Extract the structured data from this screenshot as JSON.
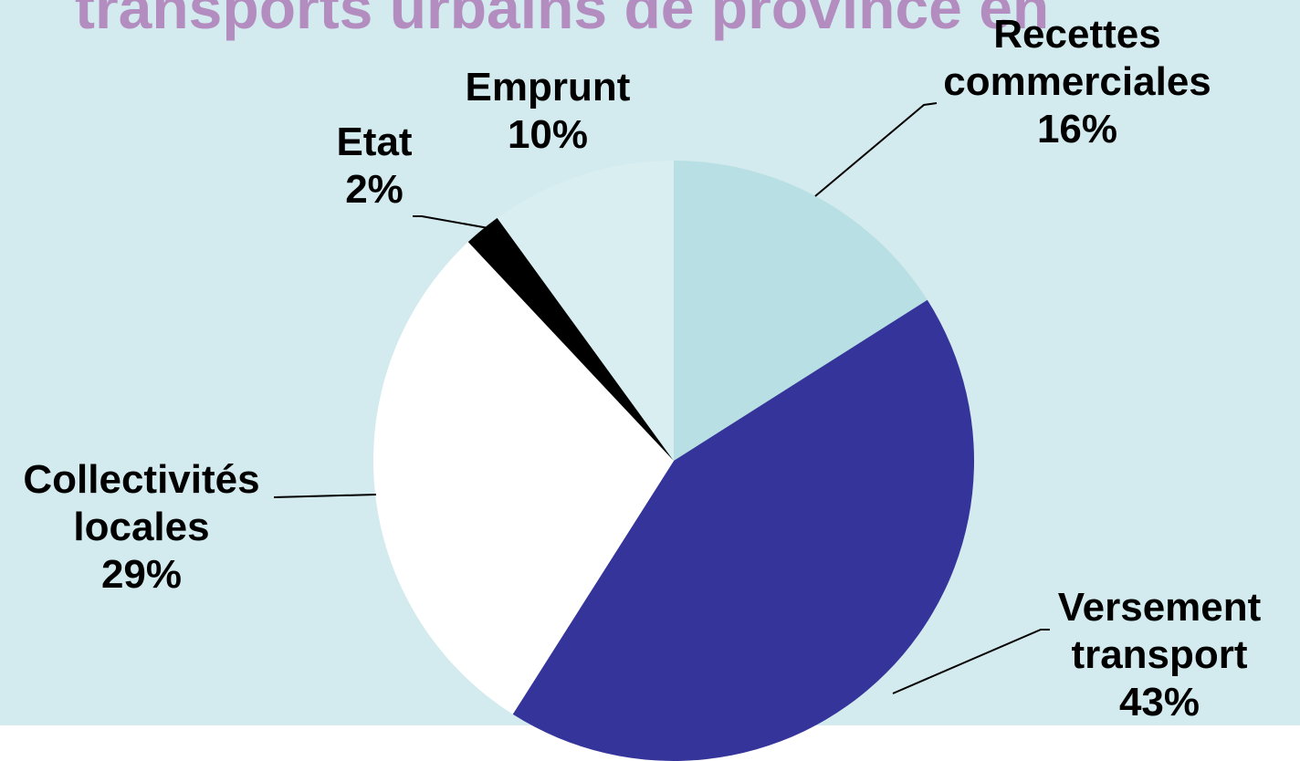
{
  "chart_data": {
    "type": "pie",
    "title": "transports urbains de province en",
    "categories": [
      "Recettes commerciales",
      "Versement transport",
      "Collectivités locales",
      "Etat",
      "Emprunt"
    ],
    "values": [
      16,
      43,
      29,
      2,
      10
    ],
    "value_labels": [
      "16%",
      "43%",
      "29%",
      "2%",
      "10%"
    ],
    "colors": [
      "#b8dfe3",
      "#35349a",
      "#ffffff",
      "#000000",
      "#d8eef1"
    ]
  }
}
